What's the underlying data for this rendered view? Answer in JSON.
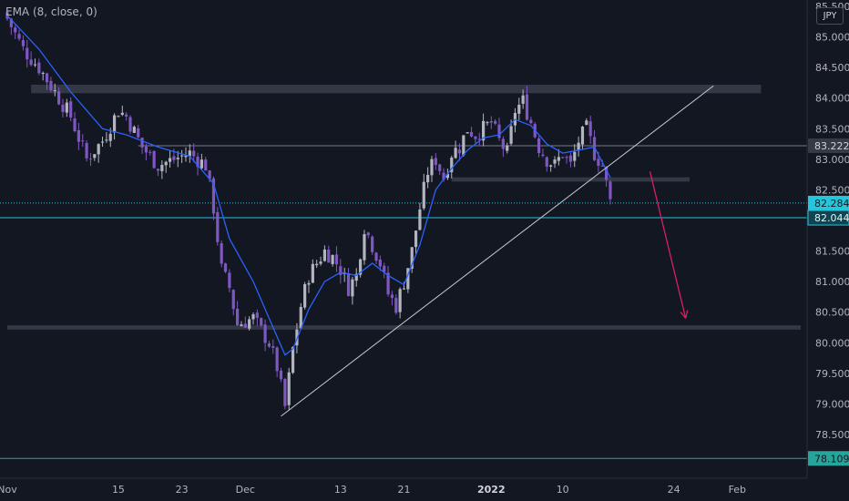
{
  "indicator": {
    "label": "EMA (8, close, 0)"
  },
  "currency_badge": "JPY",
  "colors": {
    "background": "#131722",
    "up_candle": "#b2b5be",
    "down_candle": "#7e57c2",
    "ema": "#2962ff",
    "cyan_level": "#26c6da",
    "teal_level": "#26a69a",
    "arrow": "#e91e63",
    "zone": "#3a3e4a"
  },
  "chart_data": {
    "type": "candlestick",
    "symbol_currency": "JPY",
    "ylim": [
      78.2,
      85.6
    ],
    "y_ticks": [
      "85.500",
      "85.000",
      "84.500",
      "84.000",
      "83.500",
      "83.000",
      "82.500",
      "82.000",
      "81.500",
      "81.000",
      "80.500",
      "80.000",
      "79.500",
      "79.000",
      "78.500"
    ],
    "x_tick_labels": [
      {
        "label": "Nov",
        "day": 0,
        "bold": false
      },
      {
        "label": "15",
        "day": 14,
        "bold": false
      },
      {
        "label": "23",
        "day": 22,
        "bold": false
      },
      {
        "label": "Dec",
        "day": 30,
        "bold": false
      },
      {
        "label": "13",
        "day": 42,
        "bold": false
      },
      {
        "label": "21",
        "day": 50,
        "bold": false
      },
      {
        "label": "2022",
        "day": 61,
        "bold": true
      },
      {
        "label": "10",
        "day": 70,
        "bold": false
      },
      {
        "label": "24",
        "day": 84,
        "bold": false
      },
      {
        "label": "Feb",
        "day": 92,
        "bold": false
      }
    ],
    "price_labels": [
      {
        "value": 83.222,
        "text": "83.222",
        "style": "gray"
      },
      {
        "value": 82.284,
        "text": "82.284",
        "style": "cyan"
      },
      {
        "value": 82.044,
        "text": "82.044",
        "style": "dark-cyan"
      },
      {
        "value": 78.109,
        "text": "78.109",
        "style": "teal"
      }
    ],
    "close_path": [
      [
        0,
        85.3
      ],
      [
        2,
        84.8
      ],
      [
        4,
        84.5
      ],
      [
        6,
        84.1
      ],
      [
        8,
        83.7
      ],
      [
        10,
        83.0
      ],
      [
        12,
        83.3
      ],
      [
        14,
        83.8
      ],
      [
        15,
        83.7
      ],
      [
        17,
        83.2
      ],
      [
        19,
        82.9
      ],
      [
        21,
        83.0
      ],
      [
        23,
        83.1
      ],
      [
        25,
        82.9
      ],
      [
        26,
        82.2
      ],
      [
        27,
        81.2
      ],
      [
        28,
        80.9
      ],
      [
        29,
        80.3
      ],
      [
        31,
        80.4
      ],
      [
        33,
        80.0
      ],
      [
        34,
        79.6
      ],
      [
        35,
        78.95
      ],
      [
        36,
        79.9
      ],
      [
        37,
        80.6
      ],
      [
        38,
        81.1
      ],
      [
        39,
        81.3
      ],
      [
        40,
        81.5
      ],
      [
        41,
        81.4
      ],
      [
        42,
        81.2
      ],
      [
        43,
        80.9
      ],
      [
        44,
        81.1
      ],
      [
        45,
        81.9
      ],
      [
        46,
        81.6
      ],
      [
        47,
        81.3
      ],
      [
        48,
        80.8
      ],
      [
        49,
        80.6
      ],
      [
        50,
        81.0
      ],
      [
        51,
        81.5
      ],
      [
        52,
        82.2
      ],
      [
        53,
        82.8
      ],
      [
        54,
        83.0
      ],
      [
        55,
        82.7
      ],
      [
        56,
        83.1
      ],
      [
        57,
        83.2
      ],
      [
        58,
        83.5
      ],
      [
        59,
        83.4
      ],
      [
        60,
        83.5
      ],
      [
        61,
        83.6
      ],
      [
        62,
        83.3
      ],
      [
        63,
        83.1
      ],
      [
        64,
        83.8
      ],
      [
        65,
        83.95
      ],
      [
        66,
        83.6
      ],
      [
        67,
        83.2
      ],
      [
        68,
        83.0
      ],
      [
        69,
        82.9
      ],
      [
        70,
        83.1
      ],
      [
        71,
        82.9
      ],
      [
        72,
        83.3
      ],
      [
        73,
        83.5
      ],
      [
        74,
        83.1
      ],
      [
        75,
        82.9
      ],
      [
        76,
        82.3
      ]
    ],
    "ema_path": [
      [
        0,
        85.35
      ],
      [
        4,
        84.8
      ],
      [
        8,
        84.1
      ],
      [
        12,
        83.5
      ],
      [
        15,
        83.4
      ],
      [
        19,
        83.2
      ],
      [
        23,
        83.05
      ],
      [
        26,
        82.6
      ],
      [
        28,
        81.7
      ],
      [
        31,
        81.0
      ],
      [
        33,
        80.4
      ],
      [
        35,
        79.8
      ],
      [
        36,
        79.9
      ],
      [
        38,
        80.55
      ],
      [
        40,
        81.0
      ],
      [
        42,
        81.15
      ],
      [
        44,
        81.1
      ],
      [
        46,
        81.3
      ],
      [
        48,
        81.1
      ],
      [
        50,
        80.95
      ],
      [
        52,
        81.6
      ],
      [
        54,
        82.5
      ],
      [
        56,
        82.85
      ],
      [
        58,
        83.15
      ],
      [
        60,
        83.35
      ],
      [
        62,
        83.4
      ],
      [
        64,
        83.65
      ],
      [
        66,
        83.55
      ],
      [
        68,
        83.25
      ],
      [
        70,
        83.1
      ],
      [
        72,
        83.15
      ],
      [
        74,
        83.2
      ],
      [
        76,
        82.7
      ]
    ],
    "annotations": {
      "zones": [
        {
          "x1": 3,
          "x2": 95,
          "y": 84.15,
          "thickness": 0.14
        },
        {
          "x1": 0,
          "x2": 100,
          "y": 80.25,
          "thickness": 0.07
        },
        {
          "x1": 56,
          "x2": 86,
          "y": 82.67,
          "thickness": 0.07
        }
      ],
      "trendline": {
        "x1": 34.5,
        "y1": 78.8,
        "x2": 89,
        "y2": 84.2
      },
      "arrow": {
        "x1": 81,
        "y1": 82.8,
        "x2": 85.5,
        "y2": 80.4
      },
      "levels": [
        {
          "y": 83.222,
          "style": "gray",
          "x1": 16.5
        },
        {
          "y": 82.284,
          "style": "cyan-dotted"
        },
        {
          "y": 82.044,
          "style": "cyan-solid"
        },
        {
          "y": 78.109,
          "style": "teal-solid"
        }
      ]
    }
  }
}
